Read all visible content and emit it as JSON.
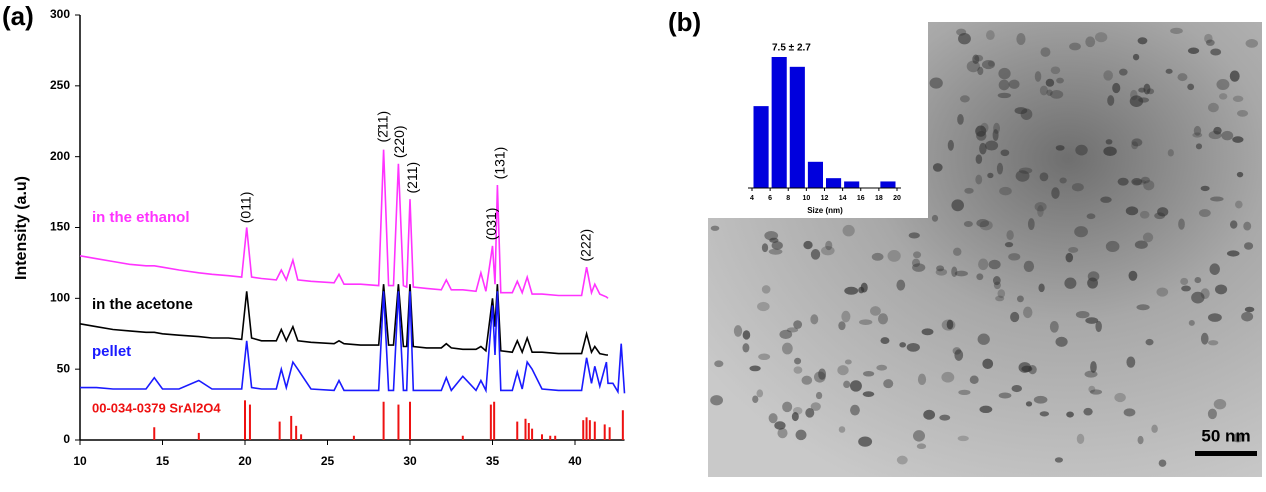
{
  "chart_data": [
    {
      "type": "line",
      "label": "(a)",
      "ylabel": "Intensity (a.u)",
      "xlim": [
        10,
        43
      ],
      "xticks": [
        10,
        15,
        20,
        25,
        30,
        35,
        40
      ],
      "ylim": [
        0,
        300
      ],
      "yticks": [
        0,
        50,
        100,
        150,
        200,
        250,
        300
      ],
      "x": [
        10,
        11,
        12,
        13,
        14,
        14.5,
        15,
        16,
        17.2,
        18,
        19,
        19.8,
        20.1,
        20.4,
        21,
        21.9,
        22.2,
        22.5,
        22.9,
        23.2,
        24,
        25.4,
        25.7,
        26,
        27,
        28.1,
        28.4,
        28.7,
        29.0,
        29.3,
        29.6,
        29.8,
        30.0,
        30.2,
        31,
        31.9,
        32.2,
        32.5,
        33.2,
        34.0,
        34.3,
        34.6,
        35.0,
        35.15,
        35.3,
        35.5,
        36.2,
        36.5,
        36.8,
        37.1,
        37.4,
        38,
        39,
        40.4,
        40.7,
        41.0,
        41.2,
        41.5,
        41.9,
        42,
        42.3,
        42.6,
        42.8,
        43
      ],
      "series": [
        {
          "name": "in the ethanol",
          "color": "#ff33ff",
          "values": [
            130,
            128,
            126,
            124,
            123,
            123,
            122,
            120,
            118,
            117,
            116,
            115,
            150,
            115,
            114,
            113,
            120,
            113,
            127,
            113,
            112,
            111,
            117,
            110,
            110,
            109,
            205,
            109,
            109,
            195,
            109,
            108,
            170,
            108,
            107,
            106,
            113,
            106,
            106,
            105,
            118,
            105,
            137,
            110,
            180,
            104,
            104,
            112,
            104,
            115,
            103,
            103,
            102,
            102,
            122,
            104,
            110,
            103,
            101,
            100,
            null,
            null,
            null,
            null
          ]
        },
        {
          "name": "in the acetone",
          "color": "#000000",
          "values": [
            82,
            80,
            78,
            77,
            76,
            76,
            75,
            74,
            73,
            72,
            72,
            71,
            105,
            72,
            70,
            70,
            78,
            70,
            80,
            70,
            69,
            68,
            70,
            68,
            67,
            67,
            110,
            67,
            67,
            110,
            66,
            66,
            110,
            66,
            65,
            65,
            68,
            65,
            64,
            64,
            66,
            63,
            100,
            80,
            110,
            63,
            62,
            70,
            62,
            72,
            62,
            62,
            61,
            61,
            75,
            62,
            66,
            61,
            60,
            60,
            null,
            null,
            null,
            null
          ]
        },
        {
          "name": "pellet",
          "color": "#1a1aff",
          "values": [
            37,
            37,
            36,
            36,
            36,
            44,
            36,
            36,
            42,
            36,
            36,
            36,
            70,
            37,
            36,
            36,
            50,
            37,
            55,
            50,
            36,
            35,
            42,
            35,
            35,
            35,
            105,
            35,
            35,
            105,
            35,
            35,
            105,
            35,
            35,
            35,
            44,
            35,
            45,
            35,
            42,
            35,
            95,
            60,
            105,
            35,
            35,
            48,
            36,
            55,
            50,
            36,
            35,
            35,
            58,
            40,
            52,
            38,
            55,
            40,
            40,
            34,
            68,
            33
          ]
        }
      ],
      "reference": {
        "name": "00-034-0379  SrAl2O4",
        "color": "#ee1111",
        "x": [
          14.5,
          17.2,
          20.0,
          20.3,
          22.1,
          22.8,
          23.1,
          23.4,
          26.6,
          28.4,
          29.3,
          30.0,
          33.2,
          34.9,
          35.1,
          36.5,
          37.0,
          37.2,
          37.4,
          38.0,
          38.5,
          38.8,
          40.5,
          40.7,
          40.9,
          41.2,
          41.8,
          42.1,
          42.9
        ],
        "values": [
          9,
          5,
          28,
          25,
          13,
          17,
          10,
          4,
          3,
          27,
          25,
          27,
          3,
          25,
          27,
          13,
          15,
          12,
          8,
          4,
          3,
          3,
          14,
          16,
          14,
          13,
          11,
          9,
          21
        ]
      },
      "annotations": [
        "(011)",
        "(2̄11)",
        "(220)",
        "(211)",
        "(031)",
        "(131)",
        "(222)"
      ]
    },
    {
      "type": "histogram",
      "label": "(b)",
      "xlabel": "Size (nm)",
      "annotation": "7.5 ± 2.7",
      "scale_bar": "50 nm",
      "bins": [
        4,
        6,
        8,
        10,
        12,
        14,
        16,
        18,
        20
      ],
      "values": [
        25,
        40,
        37,
        8,
        3,
        2,
        0,
        2
      ],
      "color": "#0000dd",
      "xlim": [
        4,
        20
      ],
      "xticks": [
        4,
        6,
        8,
        10,
        12,
        14,
        16,
        18,
        20
      ],
      "ylim": [
        0,
        40
      ]
    }
  ]
}
